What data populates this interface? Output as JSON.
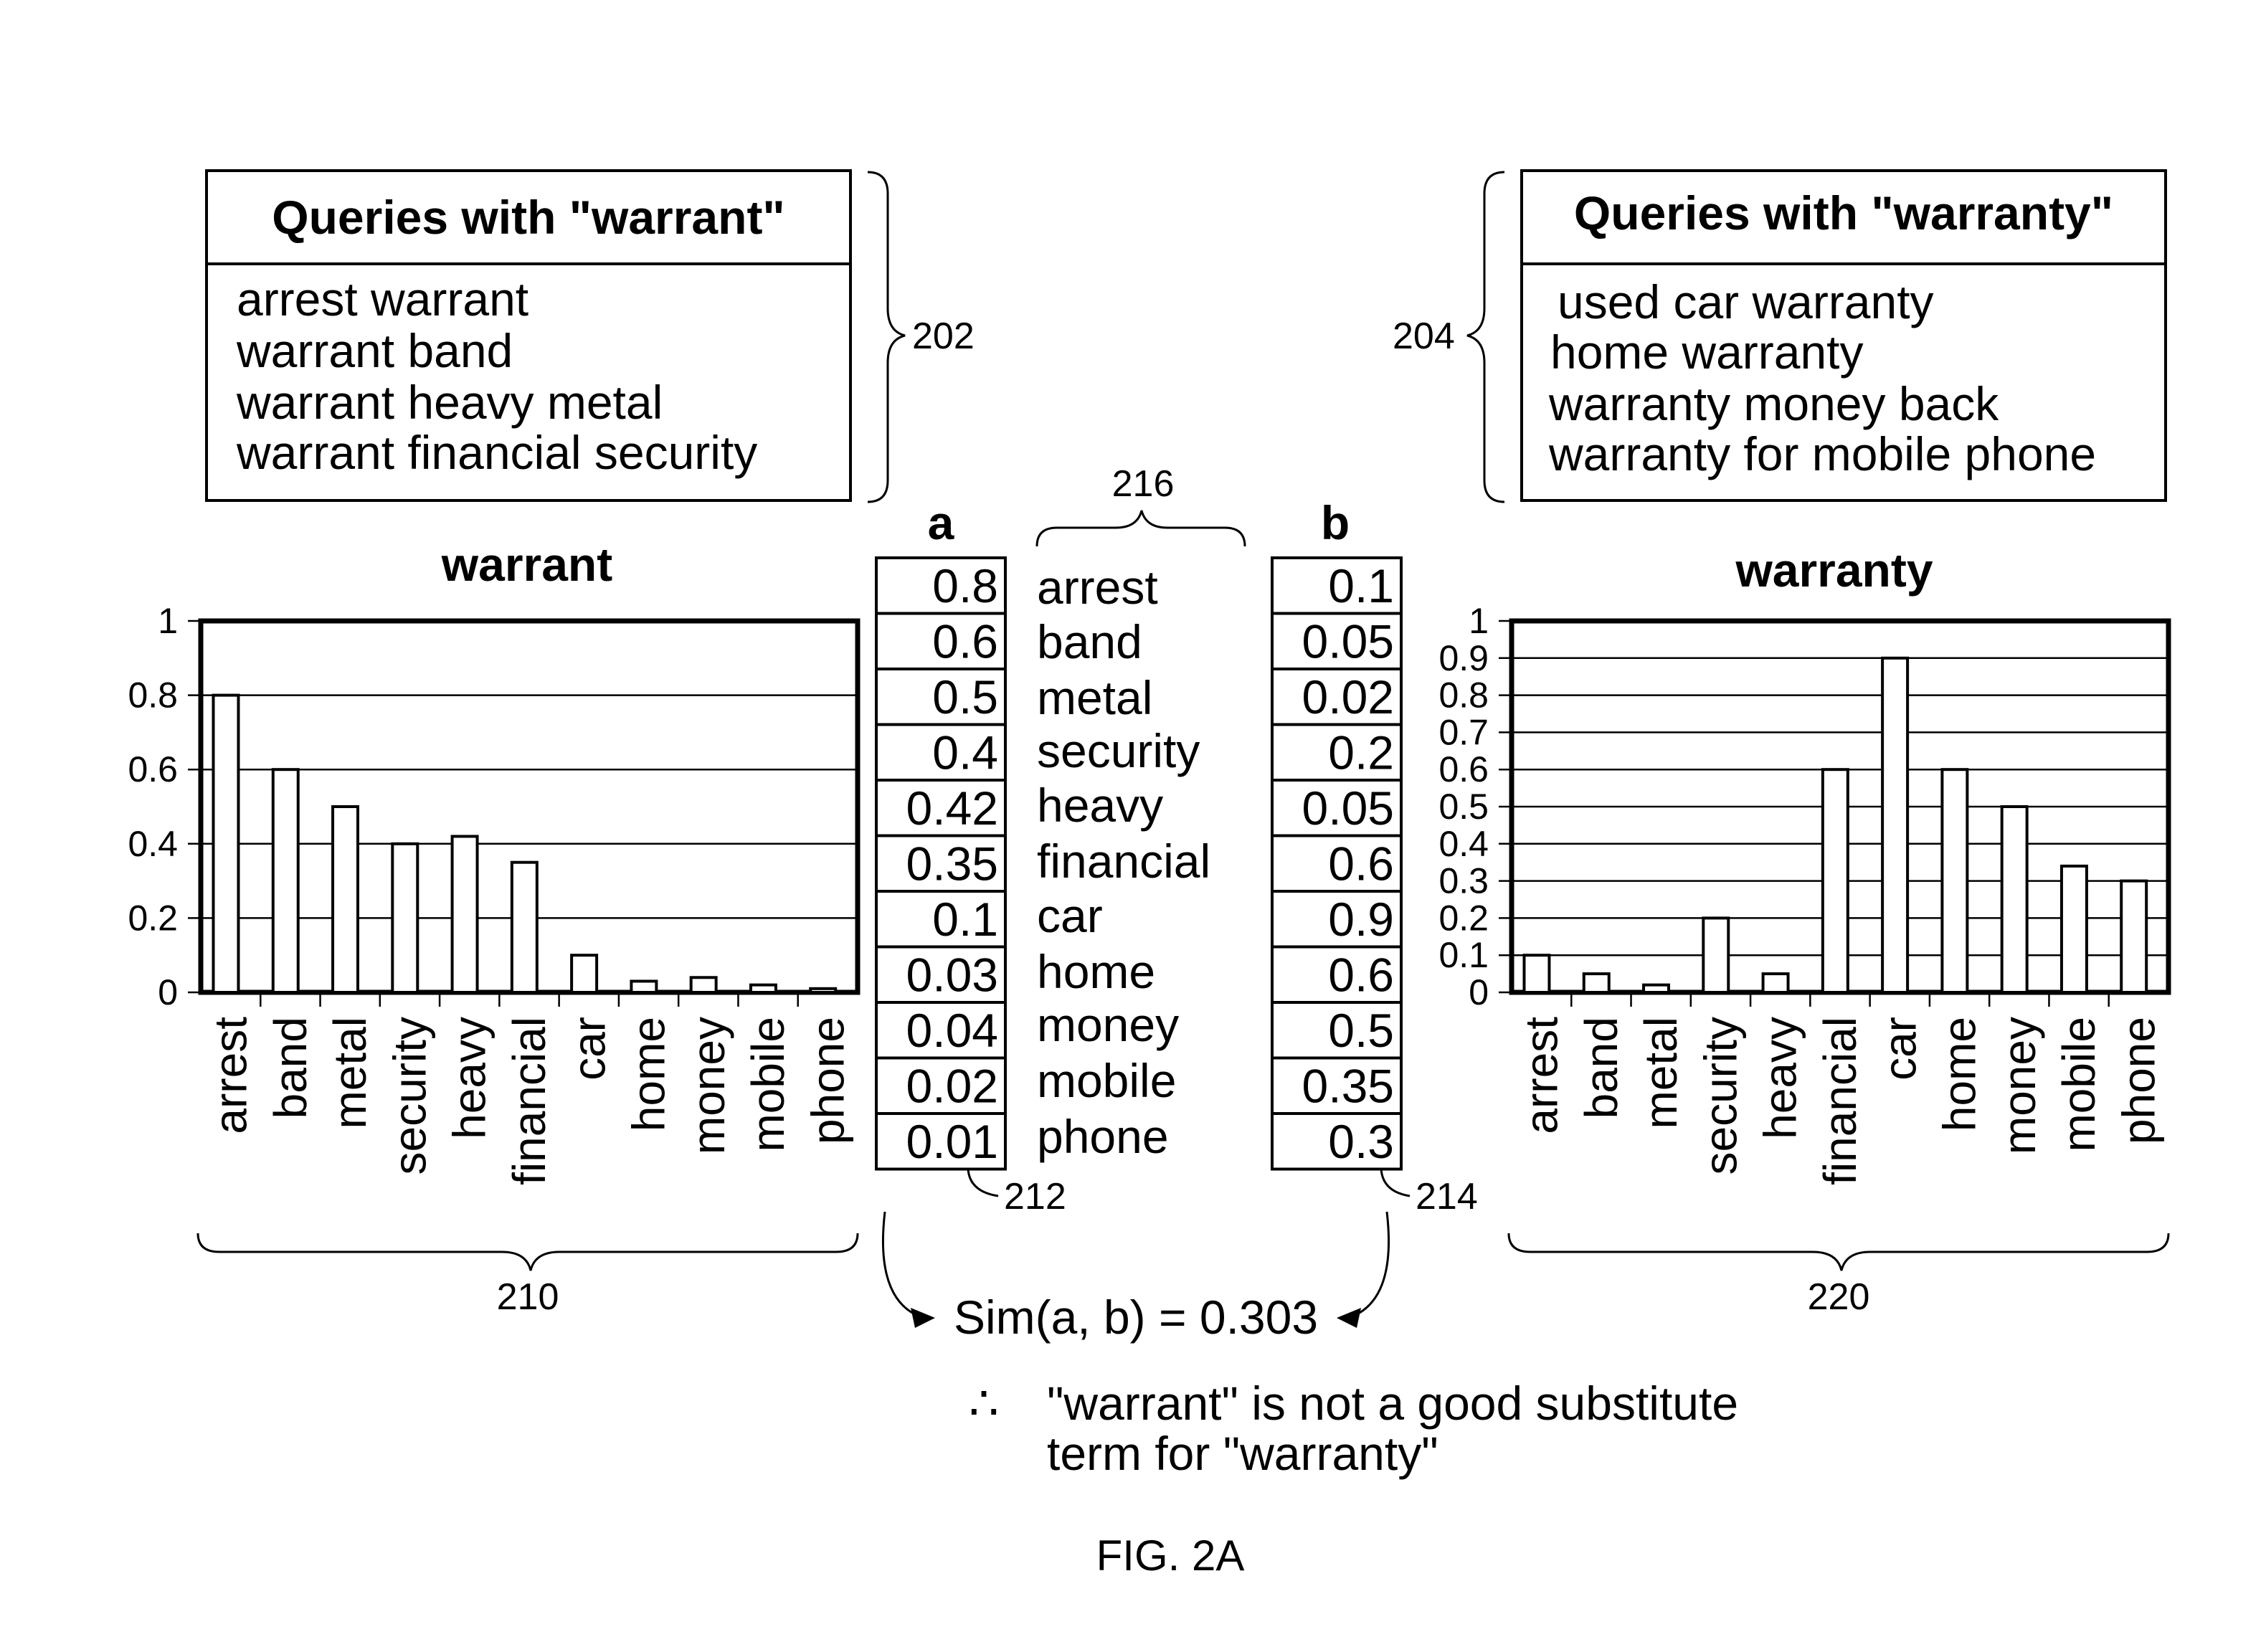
{
  "figure_label": "FIG. 2A",
  "query_boxes": {
    "left": {
      "title": "Queries with \"warrant\"",
      "queries": [
        "arrest warrant",
        "warrant band",
        "warrant heavy metal",
        "warrant financial security"
      ],
      "ref": "202"
    },
    "right": {
      "title": "Queries with \"warranty\"",
      "queries": [
        "used car warranty",
        "home warranty",
        "warranty money back",
        "warranty for mobile phone"
      ],
      "ref": "204"
    }
  },
  "vectors": {
    "a": {
      "header": "a",
      "ref": "212",
      "values": [
        "0.8",
        "0.6",
        "0.5",
        "0.4",
        "0.42",
        "0.35",
        "0.1",
        "0.03",
        "0.04",
        "0.02",
        "0.01"
      ]
    },
    "b": {
      "header": "b",
      "ref": "214",
      "values": [
        "0.1",
        "0.05",
        "0.02",
        "0.2",
        "0.05",
        "0.6",
        "0.9",
        "0.6",
        "0.5",
        "0.35",
        "0.3"
      ]
    },
    "terms": [
      "arrest",
      "band",
      "metal",
      "security",
      "heavy",
      "financial",
      "car",
      "home",
      "money",
      "mobile",
      "phone"
    ],
    "terms_ref": "216"
  },
  "similarity": "Sim(a, b) = 0.303",
  "conclusion": {
    "symbol": "∴",
    "line1": "\"warrant\" is not a good substitute",
    "line2": "term for \"warranty\""
  },
  "chart_data": [
    {
      "type": "bar",
      "title": "warrant",
      "categories": [
        "arrest",
        "band",
        "metal",
        "security",
        "heavy",
        "financial",
        "car",
        "home",
        "money",
        "mobile",
        "phone"
      ],
      "values": [
        0.8,
        0.6,
        0.5,
        0.4,
        0.42,
        0.35,
        0.1,
        0.03,
        0.04,
        0.02,
        0.01
      ],
      "yticks": [
        "0",
        "0.2",
        "0.4",
        "0.6",
        "0.8",
        "1"
      ],
      "ylim": [
        0,
        1
      ],
      "grid": true,
      "ref": "210"
    },
    {
      "type": "bar",
      "title": "warranty",
      "categories": [
        "arrest",
        "band",
        "metal",
        "security",
        "heavy",
        "financial",
        "car",
        "home",
        "money",
        "mobile",
        "phone"
      ],
      "values": [
        0.1,
        0.05,
        0.02,
        0.2,
        0.05,
        0.6,
        0.9,
        0.6,
        0.5,
        0.34,
        0.3
      ],
      "yticks": [
        "0",
        "0.1",
        "0.2",
        "0.3",
        "0.4",
        "0.5",
        "0.6",
        "0.7",
        "0.8",
        "0.9",
        "1"
      ],
      "ylim": [
        0,
        1
      ],
      "grid": true,
      "ref": "220"
    }
  ]
}
